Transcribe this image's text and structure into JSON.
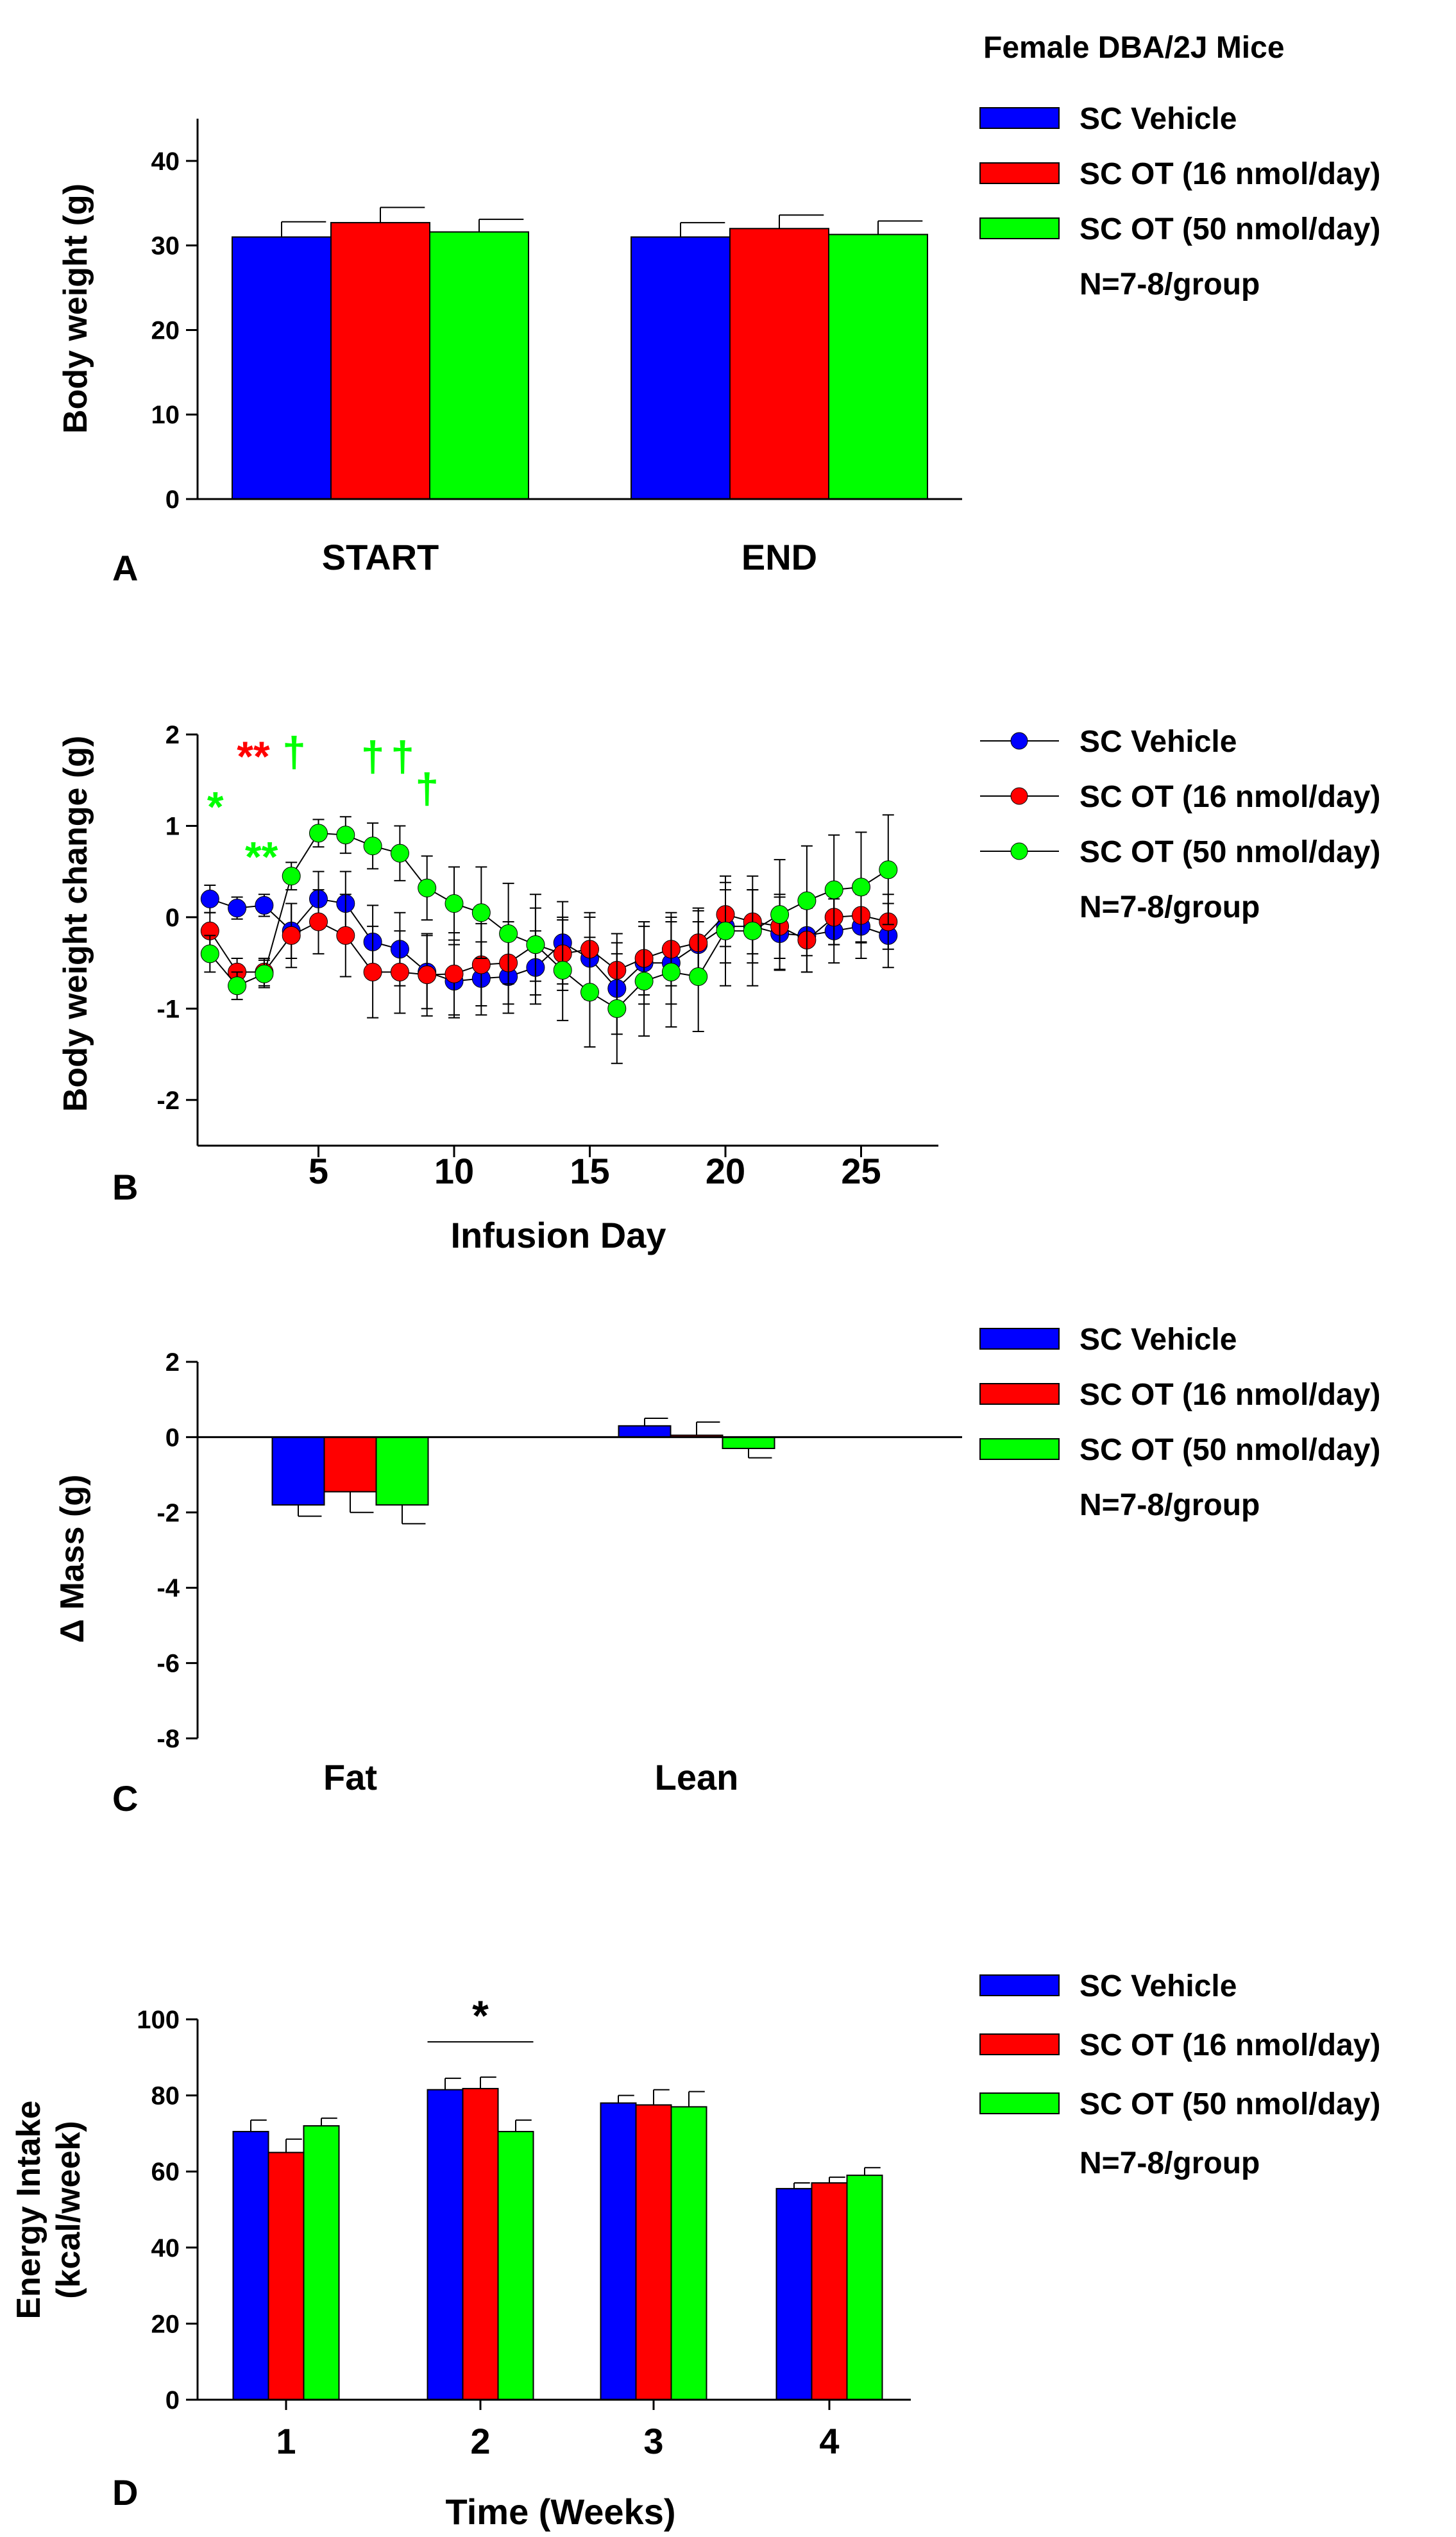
{
  "figure": {
    "title": "Female DBA/2J Mice",
    "colors": {
      "vehicle": "#0000ff",
      "ot16": "#ff0000",
      "ot50": "#00ff00"
    }
  },
  "chart_data": [
    {
      "id": "A",
      "type": "bar",
      "panel_label": "A",
      "ylabel": "Body weight (g)",
      "xlabel": "",
      "ylim": [
        0,
        45
      ],
      "yticks": [
        0,
        10,
        20,
        30,
        40
      ],
      "categories": [
        "START",
        "END"
      ],
      "series": [
        {
          "name": "SC Vehicle",
          "values": [
            31.0,
            31.0
          ],
          "errors": [
            1.8,
            1.7
          ]
        },
        {
          "name": "SC OT (16 nmol/day)",
          "values": [
            32.7,
            32.0
          ],
          "errors": [
            1.8,
            1.6
          ]
        },
        {
          "name": "SC OT (50 nmol/day)",
          "values": [
            31.6,
            31.3
          ],
          "errors": [
            1.5,
            1.6
          ]
        }
      ],
      "legend": {
        "items": [
          "SC Vehicle",
          "SC OT (16 nmol/day)",
          "SC OT (50 nmol/day)"
        ],
        "note": "N=7-8/group",
        "placement": "right"
      }
    },
    {
      "id": "B",
      "type": "line",
      "panel_label": "B",
      "ylabel": "Body weight change (g)",
      "xlabel": "Infusion Day",
      "xlim": [
        0,
        28
      ],
      "ylim": [
        -2.5,
        2
      ],
      "xticks": [
        5,
        10,
        15,
        20,
        25
      ],
      "yticks": [
        -2,
        -1,
        0,
        1,
        2
      ],
      "x": [
        1,
        2,
        3,
        4,
        5,
        6,
        7,
        8,
        9,
        10,
        11,
        12,
        13,
        14,
        15,
        16,
        17,
        18,
        19,
        20,
        21,
        22,
        23,
        24,
        25,
        26
      ],
      "series": [
        {
          "name": "SC Vehicle",
          "values": [
            0.2,
            0.1,
            0.13,
            -0.15,
            0.2,
            0.15,
            -0.27,
            -0.35,
            -0.6,
            -0.7,
            -0.67,
            -0.65,
            -0.55,
            -0.28,
            -0.45,
            -0.78,
            -0.5,
            -0.5,
            -0.3,
            -0.1,
            -0.1,
            -0.18,
            -0.2,
            -0.15,
            -0.1,
            -0.2
          ],
          "errors": [
            0.15,
            0.12,
            0.12,
            0.3,
            0.3,
            0.35,
            0.4,
            0.4,
            0.4,
            0.4,
            0.4,
            0.4,
            0.4,
            0.45,
            0.45,
            0.5,
            0.45,
            0.45,
            0.4,
            0.4,
            0.4,
            0.4,
            0.4,
            0.35,
            0.35,
            0.35
          ]
        },
        {
          "name": "SC OT (16 nmol/day)",
          "values": [
            -0.15,
            -0.6,
            -0.6,
            -0.2,
            -0.05,
            -0.2,
            -0.6,
            -0.6,
            -0.63,
            -0.62,
            -0.52,
            -0.5,
            -0.3,
            -0.4,
            -0.35,
            -0.58,
            -0.45,
            -0.35,
            -0.28,
            0.03,
            -0.05,
            -0.1,
            -0.25,
            0.0,
            0.02,
            -0.05
          ],
          "errors": [
            0.2,
            0.15,
            0.15,
            0.35,
            0.35,
            0.45,
            0.5,
            0.45,
            0.45,
            0.45,
            0.45,
            0.45,
            0.4,
            0.4,
            0.4,
            0.4,
            0.4,
            0.4,
            0.35,
            0.35,
            0.35,
            0.35,
            0.35,
            0.3,
            0.3,
            0.3
          ]
        },
        {
          "name": "SC OT (50 nmol/day)",
          "values": [
            -0.4,
            -0.75,
            -0.62,
            0.45,
            0.92,
            0.9,
            0.78,
            0.7,
            0.32,
            0.15,
            0.05,
            -0.18,
            -0.3,
            -0.58,
            -0.82,
            -1.0,
            -0.7,
            -0.6,
            -0.65,
            -0.15,
            -0.15,
            0.03,
            0.18,
            0.3,
            0.33,
            0.52
          ],
          "errors": [
            0.2,
            0.15,
            0.15,
            0.15,
            0.15,
            0.2,
            0.25,
            0.3,
            0.35,
            0.4,
            0.5,
            0.55,
            0.55,
            0.55,
            0.6,
            0.6,
            0.6,
            0.6,
            0.6,
            0.6,
            0.6,
            0.6,
            0.6,
            0.6,
            0.6,
            0.6
          ]
        }
      ],
      "annotations": [
        {
          "text": "**",
          "color": "#ff0000",
          "x": 2.6,
          "y": 1.6
        },
        {
          "text": "*",
          "color": "#00ff00",
          "x": 1.2,
          "y": 1.05
        },
        {
          "text": "**",
          "color": "#00ff00",
          "x": 2.9,
          "y": 0.5
        },
        {
          "text": "†",
          "color": "#00ff00",
          "x": 4.1,
          "y": 1.65
        },
        {
          "text": "†",
          "color": "#00ff00",
          "x": 7.0,
          "y": 1.6
        },
        {
          "text": "†",
          "color": "#00ff00",
          "x": 8.1,
          "y": 1.6
        },
        {
          "text": "†",
          "color": "#00ff00",
          "x": 9.0,
          "y": 1.25
        }
      ],
      "legend": {
        "items": [
          "SC Vehicle",
          "SC OT (16 nmol/day)",
          "SC OT (50 nmol/day)"
        ],
        "note": "N=7-8/group",
        "placement": "right"
      }
    },
    {
      "id": "C",
      "type": "bar",
      "panel_label": "C",
      "ylabel": "Δ Mass (g)",
      "xlabel": "",
      "ylim": [
        -8,
        2
      ],
      "yticks": [
        -8,
        -6,
        -4,
        -2,
        0,
        2
      ],
      "categories": [
        "Fat",
        "Lean"
      ],
      "series": [
        {
          "name": "SC Vehicle",
          "values": [
            -1.8,
            0.3
          ],
          "errors": [
            0.3,
            0.2
          ]
        },
        {
          "name": "SC OT (16 nmol/day)",
          "values": [
            -1.45,
            0.05
          ],
          "errors": [
            0.55,
            0.35
          ]
        },
        {
          "name": "SC OT (50 nmol/day)",
          "values": [
            -1.8,
            -0.3
          ],
          "errors": [
            0.5,
            0.25
          ]
        }
      ],
      "legend": {
        "items": [
          "SC Vehicle",
          "SC OT (16 nmol/day)",
          "SC OT (50 nmol/day)"
        ],
        "note": "N=7-8/group",
        "placement": "right"
      }
    },
    {
      "id": "D",
      "type": "bar",
      "panel_label": "D",
      "ylabel": [
        "Energy Intake",
        "(kcal/week)"
      ],
      "xlabel": "Time (Weeks)",
      "ylim": [
        0,
        100
      ],
      "yticks": [
        0,
        20,
        40,
        60,
        80,
        100
      ],
      "categories": [
        "1",
        "2",
        "3",
        "4"
      ],
      "series": [
        {
          "name": "SC Vehicle",
          "values": [
            70.5,
            81.5,
            78.0,
            55.5
          ],
          "errors": [
            3.0,
            3.0,
            2.0,
            1.5
          ]
        },
        {
          "name": "SC OT (16 nmol/day)",
          "values": [
            65.0,
            81.8,
            77.5,
            57.0
          ],
          "errors": [
            3.5,
            3.0,
            4.0,
            1.5
          ]
        },
        {
          "name": "SC OT (50 nmol/day)",
          "values": [
            72.0,
            70.5,
            77.0,
            59.0
          ],
          "errors": [
            2.0,
            3.0,
            4.0,
            2.0
          ]
        }
      ],
      "annotations": [
        {
          "text": "*",
          "color": "#000000",
          "category": "2",
          "bracket": true
        }
      ],
      "legend": {
        "items": [
          "SC Vehicle",
          "SC OT (16 nmol/day)",
          "SC OT (50 nmol/day)"
        ],
        "note": "N=7-8/group",
        "placement": "right"
      }
    }
  ]
}
